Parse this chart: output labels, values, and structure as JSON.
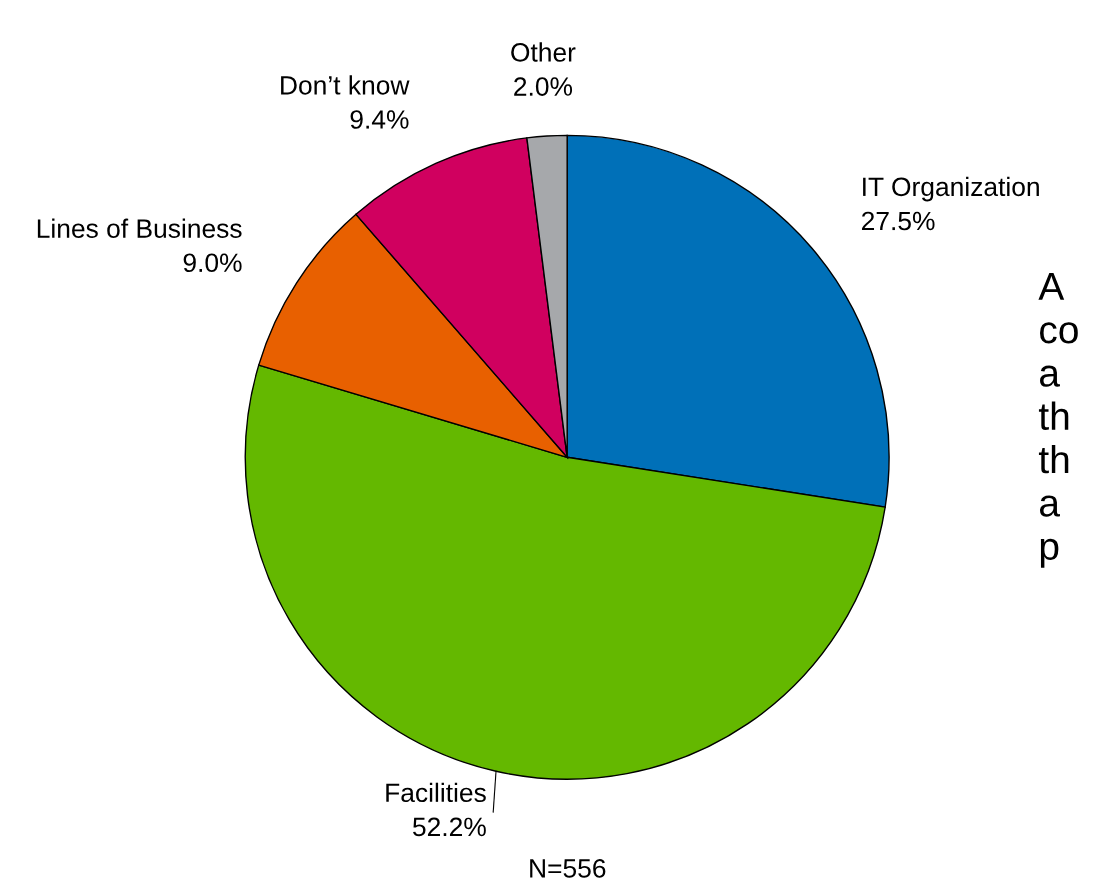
{
  "chart_data": {
    "type": "pie",
    "categories": [
      "IT Organization",
      "Facilities",
      "Lines of Business",
      "Don’t know",
      "Other"
    ],
    "values": [
      27.5,
      52.2,
      9.0,
      9.4,
      2.0
    ],
    "value_labels": [
      "27.5%",
      "52.2%",
      "9.0%",
      "9.4%",
      "2.0%"
    ],
    "colors": [
      "#0070b8",
      "#64b800",
      "#e86000",
      "#d0005f",
      "#a6a8ab"
    ],
    "annotations": [
      "N=556",
      "A\nco\na\nth\nth\na\np"
    ]
  }
}
